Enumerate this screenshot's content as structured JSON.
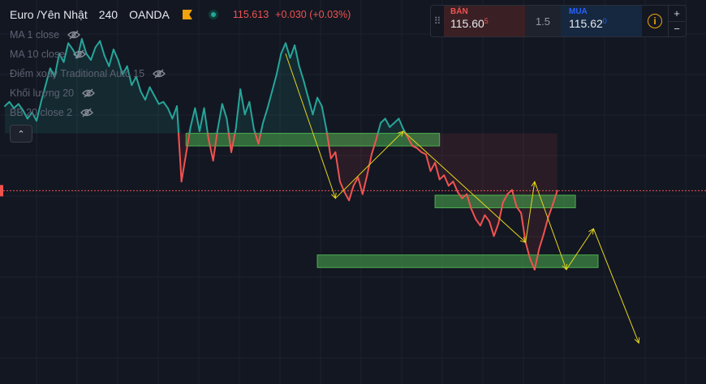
{
  "header": {
    "symbol": "Euro /Yên Nhật",
    "timeframe": "240",
    "exchange": "OANDA",
    "last_price": "115.613",
    "change": "+0.030 (+0.03%)"
  },
  "indicators": [
    {
      "label": "MA 1 close"
    },
    {
      "label": "MA 10 close"
    },
    {
      "label": "Điểm xoay Traditional Auto 15"
    },
    {
      "label": "Khối lượng 20"
    },
    {
      "label": "BB 20 close 2"
    }
  ],
  "collapse_glyph": "⌃",
  "trade_panel": {
    "grip": "⠿",
    "sell_label": "BÁN",
    "sell_price_main": "115.60",
    "sell_price_sup": "5",
    "spread": "1.5",
    "buy_label": "MUA",
    "buy_price_main": "115.62",
    "buy_price_sup": "0",
    "info_glyph": "i",
    "plus": "+",
    "minus": "−"
  },
  "colors": {
    "background": "#131722",
    "up_line": "#26a69a",
    "down_line": "#ef5350",
    "zone_fill": "#4caf50",
    "drawing": "#e6d51a",
    "price_line": "#ef5350"
  },
  "chart_data": {
    "type": "line",
    "title": "",
    "xlabel": "",
    "ylabel": "",
    "ylim": [
      113.8,
      117.2
    ],
    "current_price": 115.613,
    "series": [
      {
        "values": [
          116.42,
          116.46,
          116.4,
          116.44,
          116.38,
          116.3,
          116.36,
          116.28,
          116.46,
          116.62,
          116.78,
          116.7,
          116.92,
          116.84,
          117.02,
          116.96,
          116.88,
          117.06,
          116.92,
          116.86,
          116.98,
          117.04,
          116.9,
          116.8,
          116.96,
          116.86,
          116.72,
          116.8,
          116.62,
          116.7,
          116.56,
          116.48,
          116.6,
          116.52,
          116.44,
          116.46,
          116.4,
          116.3,
          116.42,
          115.7,
          115.96,
          116.22,
          116.4,
          116.18,
          116.4,
          116.1,
          115.9,
          116.2,
          116.44,
          116.3,
          115.98,
          116.2,
          116.58,
          116.34,
          116.46,
          116.2,
          116.06,
          116.26,
          116.4,
          116.56,
          116.72,
          116.92,
          117.02,
          116.88,
          117.0,
          116.8,
          116.66,
          116.5,
          116.34,
          116.5,
          116.42,
          116.2,
          115.92,
          115.98,
          115.7,
          115.6,
          115.52,
          115.66,
          115.74,
          115.58,
          115.76,
          115.96,
          116.1,
          116.26,
          116.3,
          116.22,
          116.26,
          116.3,
          116.2,
          116.12,
          116.04,
          116.02,
          115.98,
          115.96,
          115.8,
          115.88,
          115.72,
          115.76,
          115.66,
          115.7,
          115.6,
          115.54,
          115.58,
          115.44,
          115.34,
          115.28,
          115.38,
          115.32,
          115.18,
          115.3,
          115.5,
          115.58,
          115.62,
          115.46,
          115.4,
          115.12,
          114.96,
          114.86,
          115.06,
          115.2,
          115.36,
          115.48,
          115.613
        ]
      }
    ],
    "zones": [
      {
        "from_index": 40,
        "to_index": 96,
        "low": 116.04,
        "high": 116.16
      },
      {
        "from_index": 95,
        "to_index": 126,
        "low": 115.45,
        "high": 115.57
      },
      {
        "from_index": 69,
        "to_index": 131,
        "low": 114.88,
        "high": 115.0
      }
    ],
    "zigzag": [
      {
        "index": 62,
        "value": 116.92
      },
      {
        "index": 73,
        "value": 115.54
      },
      {
        "index": 88,
        "value": 116.18
      },
      {
        "index": 115,
        "value": 115.12
      },
      {
        "index": 117,
        "value": 115.7
      },
      {
        "index": 124,
        "value": 114.86
      },
      {
        "index": 130,
        "value": 115.25
      },
      {
        "index": 140,
        "value": 114.16
      }
    ]
  }
}
